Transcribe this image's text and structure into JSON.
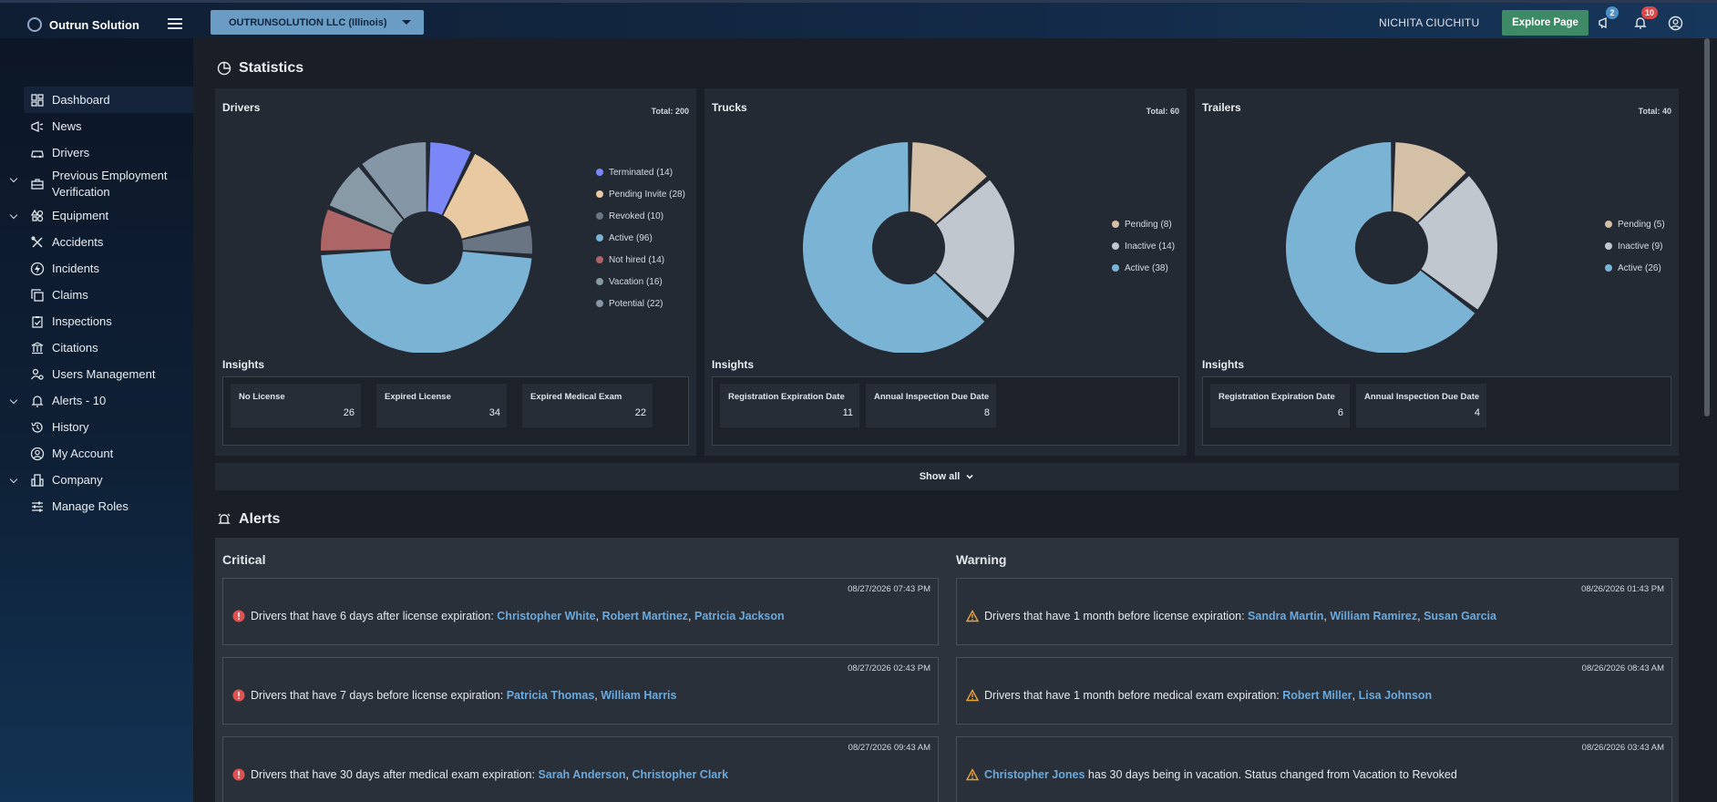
{
  "brand": {
    "name": "Outrun Solution"
  },
  "topbar": {
    "company": "OUTRUNSOLUTION LLC (Illinois)",
    "user": "NICHITA CIUCHITU",
    "explore_label": "Explore Page",
    "news_badge": "2",
    "notif_badge": "10"
  },
  "sidebar": {
    "items": [
      {
        "label": "Dashboard",
        "icon": "dashboard-icon"
      },
      {
        "label": "News",
        "icon": "megaphone-icon"
      },
      {
        "label": "Drivers",
        "icon": "car-icon"
      },
      {
        "label": "Previous Employment",
        "label2": "Verification",
        "icon": "briefcase-icon"
      },
      {
        "label": "Equipment",
        "icon": "shapes-icon"
      },
      {
        "label": "Accidents",
        "icon": "tools-icon"
      },
      {
        "label": "Incidents",
        "icon": "bolt-icon"
      },
      {
        "label": "Claims",
        "icon": "copy-icon"
      },
      {
        "label": "Inspections",
        "icon": "clipboard-check-icon"
      },
      {
        "label": "Citations",
        "icon": "courthouse-icon"
      },
      {
        "label": "Users Management",
        "icon": "users-gear-icon"
      },
      {
        "label": "Alerts - 10",
        "icon": "bell-icon"
      },
      {
        "label": "History",
        "icon": "history-icon"
      },
      {
        "label": "My Account",
        "icon": "account-icon"
      },
      {
        "label": "Company",
        "icon": "building-icon"
      },
      {
        "label": "Manage Roles",
        "icon": "sliders-icon"
      }
    ]
  },
  "statistics": {
    "title": "Statistics",
    "show_all": "Show all",
    "insights_label": "Insights",
    "cards": [
      {
        "title": "Drivers",
        "total": "Total: 200",
        "legend": [
          "Terminated (14)",
          "Pending Invite (28)",
          "Revoked (10)",
          "Active (96)",
          "Not hired (14)",
          "Vacation (16)",
          "Potential (22)"
        ],
        "insights": [
          {
            "label": "No License",
            "value": "26"
          },
          {
            "label": "Expired License",
            "value": "34"
          },
          {
            "label": "Expired Medical Exam",
            "value": "22"
          }
        ]
      },
      {
        "title": "Trucks",
        "total": "Total: 60",
        "legend": [
          "Pending (8)",
          "Inactive (14)",
          "Active (38)"
        ],
        "insights": [
          {
            "label": "Registration Expiration Date",
            "value": "11"
          },
          {
            "label": "Annual Inspection Due Date",
            "value": "8"
          }
        ]
      },
      {
        "title": "Trailers",
        "total": "Total: 40",
        "legend": [
          "Pending (5)",
          "Inactive (9)",
          "Active (26)"
        ],
        "insights": [
          {
            "label": "Registration Expiration Date",
            "value": "6"
          },
          {
            "label": "Annual Inspection Due Date",
            "value": "4"
          }
        ]
      }
    ]
  },
  "colors": {
    "terminated": "#7b86f7",
    "pending": "#e8c9a2",
    "revoked": "#6a7584",
    "active": "#7ab3d4",
    "not_hired": "#ad6566",
    "vacation": "#879aa6",
    "potential": "#8597a6",
    "truck_pending": "#d3c0a7",
    "truck_inactive": "#c0c7ce",
    "truck_active": "#7ab3d4"
  },
  "chart_data": [
    {
      "type": "pie",
      "title": "Drivers",
      "categories": [
        "Terminated",
        "Pending Invite",
        "Revoked",
        "Active",
        "Not hired",
        "Vacation",
        "Potential"
      ],
      "values": [
        14,
        28,
        10,
        96,
        14,
        16,
        22
      ]
    },
    {
      "type": "pie",
      "title": "Trucks",
      "categories": [
        "Pending",
        "Inactive",
        "Active"
      ],
      "values": [
        8,
        14,
        38
      ]
    },
    {
      "type": "pie",
      "title": "Trailers",
      "categories": [
        "Pending",
        "Inactive",
        "Active"
      ],
      "values": [
        5,
        9,
        26
      ]
    }
  ],
  "alerts": {
    "title": "Alerts",
    "critical_title": "Critical",
    "warning_title": "Warning",
    "critical": [
      {
        "time": "08/27/2026 07:43 PM",
        "text": "Drivers that have 6 days after license expiration: ",
        "names": [
          "Christopher White",
          "Robert Martinez",
          "Patricia Jackson"
        ],
        "suffix": ""
      },
      {
        "time": "08/27/2026 02:43 PM",
        "text": "Drivers that have 7 days before license expiration: ",
        "names": [
          "Patricia Thomas",
          "William Harris"
        ],
        "suffix": ""
      },
      {
        "time": "08/27/2026 09:43 AM",
        "text": "Drivers that have 30 days after medical exam expiration: ",
        "names": [
          "Sarah Anderson",
          "Christopher Clark"
        ],
        "suffix": ""
      }
    ],
    "warning": [
      {
        "time": "08/26/2026 01:43 PM",
        "text": "Drivers that have 1 month before license expiration: ",
        "names": [
          "Sandra Martin",
          "William Ramirez",
          "Susan Garcia"
        ],
        "suffix": ""
      },
      {
        "time": "08/26/2026 08:43 AM",
        "text": "Drivers that have 1 month before medical exam expiration: ",
        "names": [
          "Robert Miller",
          "Lisa Johnson"
        ],
        "suffix": ""
      },
      {
        "time": "08/26/2026 03:43 AM",
        "text": "",
        "names": [
          "Christopher Jones"
        ],
        "suffix": " has 30 days being in vacation. Status changed from Vacation to Revoked"
      }
    ]
  }
}
